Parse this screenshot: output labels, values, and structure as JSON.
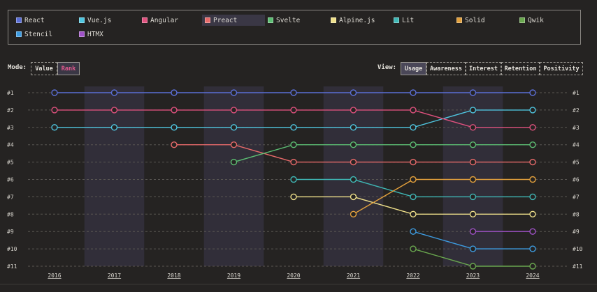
{
  "legend": [
    {
      "label": "React",
      "color": "#5b6fd6"
    },
    {
      "label": "Vue.js",
      "color": "#4fc6e0"
    },
    {
      "label": "Angular",
      "color": "#e0517e"
    },
    {
      "label": "Preact",
      "color": "#e86a6a",
      "active": true
    },
    {
      "label": "Svelte",
      "color": "#5cbe73"
    },
    {
      "label": "Alpine.js",
      "color": "#efe08a"
    },
    {
      "label": "Lit",
      "color": "#3fb7b5"
    },
    {
      "label": "Solid",
      "color": "#e2a03c"
    },
    {
      "label": "Qwik",
      "color": "#6aa84f"
    },
    {
      "label": "Stencil",
      "color": "#3d9be0"
    },
    {
      "label": "HTMX",
      "color": "#a052c8"
    }
  ],
  "mode": {
    "label": "Mode:",
    "options": [
      "Value",
      "Rank"
    ],
    "selected": "Rank"
  },
  "view": {
    "label": "View:",
    "options": [
      "Usage",
      "Awareness",
      "Interest",
      "Retention",
      "Positivity"
    ],
    "selected": "Usage"
  },
  "chart_data": {
    "type": "line",
    "x": [
      "2016",
      "2017",
      "2018",
      "2019",
      "2020",
      "2021",
      "2022",
      "2023",
      "2024"
    ],
    "y_ticks": [
      "#1",
      "#2",
      "#3",
      "#4",
      "#5",
      "#6",
      "#7",
      "#8",
      "#9",
      "#10",
      "#11"
    ],
    "y_axis": "rank",
    "ylim": [
      1,
      11
    ],
    "series": [
      {
        "name": "React",
        "color": "#5b6fd6",
        "values": [
          1,
          1,
          1,
          1,
          1,
          1,
          1,
          1,
          1
        ]
      },
      {
        "name": "Vue.js",
        "color": "#4fc6e0",
        "values": [
          3,
          3,
          3,
          3,
          3,
          3,
          3,
          2,
          2
        ]
      },
      {
        "name": "Angular",
        "color": "#e0517e",
        "values": [
          2,
          2,
          2,
          2,
          2,
          2,
          2,
          3,
          3
        ]
      },
      {
        "name": "Preact",
        "color": "#e86a6a",
        "values": [
          null,
          null,
          4,
          4,
          5,
          5,
          5,
          5,
          5
        ]
      },
      {
        "name": "Svelte",
        "color": "#5cbe73",
        "values": [
          null,
          null,
          null,
          5,
          4,
          4,
          4,
          4,
          4
        ]
      },
      {
        "name": "Alpine.js",
        "color": "#efe08a",
        "values": [
          null,
          null,
          null,
          null,
          7,
          7,
          8,
          8,
          8
        ]
      },
      {
        "name": "Lit",
        "color": "#3fb7b5",
        "values": [
          null,
          null,
          null,
          null,
          6,
          6,
          7,
          7,
          7
        ]
      },
      {
        "name": "Solid",
        "color": "#e2a03c",
        "values": [
          null,
          null,
          null,
          null,
          null,
          8,
          6,
          6,
          6
        ]
      },
      {
        "name": "Qwik",
        "color": "#6aa84f",
        "values": [
          null,
          null,
          null,
          null,
          null,
          null,
          10,
          11,
          11
        ]
      },
      {
        "name": "Stencil",
        "color": "#3d9be0",
        "values": [
          null,
          null,
          null,
          null,
          null,
          null,
          9,
          10,
          10
        ]
      },
      {
        "name": "HTMX",
        "color": "#a052c8",
        "values": [
          null,
          null,
          null,
          null,
          null,
          null,
          null,
          9,
          9
        ]
      }
    ]
  }
}
